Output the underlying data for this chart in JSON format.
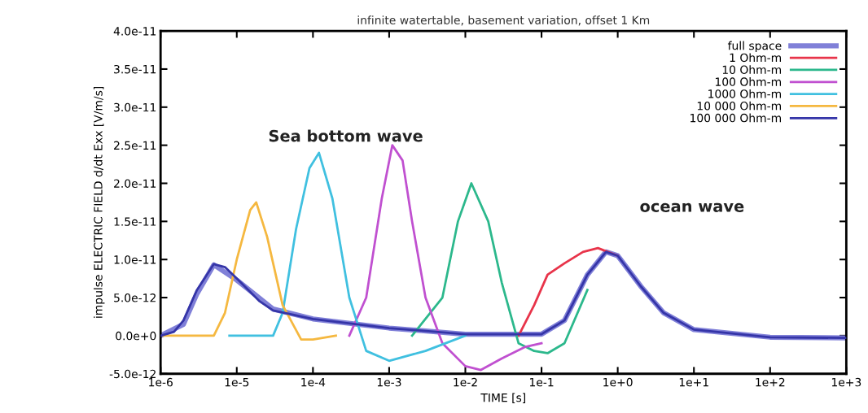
{
  "chart_data": {
    "type": "line",
    "title": "infinite watertable, basement variation, offset 1 Km",
    "xlabel": "TIME [s]",
    "ylabel": "impulse ELECTRIC FIELD d/dt Exx [V/m/s]",
    "log": "x",
    "grid": false,
    "legend": "top right",
    "marker": "none",
    "line_style": "solid",
    "xlim": [
      1e-06,
      1000
    ],
    "ylim": [
      -5e-12,
      4e-11
    ],
    "xticks": [
      {
        "value": 1e-06,
        "label": "1e-6"
      },
      {
        "value": 1e-05,
        "label": "1e-5"
      },
      {
        "value": 0.0001,
        "label": "1e-4"
      },
      {
        "value": 0.001,
        "label": "1e-3"
      },
      {
        "value": 0.01,
        "label": "1e-2"
      },
      {
        "value": 0.1,
        "label": "1e-1"
      },
      {
        "value": 1,
        "label": "1e+0"
      },
      {
        "value": 10,
        "label": "1e+1"
      },
      {
        "value": 100,
        "label": "1e+2"
      },
      {
        "value": 1000,
        "label": "1e+3"
      }
    ],
    "yticks": [
      {
        "value": -5e-12,
        "label": "-5.0e-12"
      },
      {
        "value": 0,
        "label": "0.0e+0"
      },
      {
        "value": 5e-12,
        "label": "5.0e-12"
      },
      {
        "value": 1e-11,
        "label": "1.0e-11"
      },
      {
        "value": 1.5e-11,
        "label": "1.5e-11"
      },
      {
        "value": 2e-11,
        "label": "2.0e-11"
      },
      {
        "value": 2.5e-11,
        "label": "2.5e-11"
      },
      {
        "value": 3e-11,
        "label": "3.0e-11"
      },
      {
        "value": 3.5e-11,
        "label": "3.5e-11"
      },
      {
        "value": 4e-11,
        "label": "4.0e-11"
      }
    ],
    "annotations": [
      "Sea bottom wave",
      "ocean wave"
    ],
    "series": [
      {
        "name": "full space",
        "color": "#8080d8",
        "x": [
          1e-06,
          2e-06,
          3e-06,
          5e-06,
          1e-05,
          3e-05,
          0.0001,
          0.001,
          0.01,
          0.1,
          0.2,
          0.4,
          0.7,
          1,
          2,
          4,
          10,
          100,
          1000
        ],
        "values": [
          0,
          1.5e-12,
          5.5e-12,
          9.3e-12,
          7.3e-12,
          3.5e-12,
          2.2e-12,
          1e-12,
          2e-13,
          2e-13,
          2e-12,
          8e-12,
          1.1e-11,
          1.05e-11,
          6.5e-12,
          3e-12,
          8e-13,
          -2e-13,
          -3e-13
        ]
      },
      {
        "name": "1 Ohm-m",
        "color": "#e8344a",
        "x": [
          0.05,
          0.08,
          0.12,
          0.2,
          0.35,
          0.55,
          1
        ],
        "values": [
          0,
          4e-12,
          8e-12,
          9.5e-12,
          1.1e-11,
          1.15e-11,
          1.05e-11
        ]
      },
      {
        "name": "10 Ohm-m",
        "color": "#2cb88c",
        "x": [
          0.002,
          0.005,
          0.008,
          0.012,
          0.02,
          0.03,
          0.05,
          0.08,
          0.12,
          0.2,
          0.4
        ],
        "values": [
          0,
          5e-12,
          1.5e-11,
          2e-11,
          1.5e-11,
          7e-12,
          -1e-12,
          -2e-12,
          -2.3e-12,
          -1e-12,
          6e-12
        ]
      },
      {
        "name": "100 Ohm-m",
        "color": "#c050d0",
        "x": [
          0.0003,
          0.0005,
          0.0008,
          0.0011,
          0.0015,
          0.002,
          0.003,
          0.005,
          0.01,
          0.016,
          0.03,
          0.06,
          0.1
        ],
        "values": [
          0,
          5e-12,
          1.8e-11,
          2.5e-11,
          2.3e-11,
          1.5e-11,
          5e-12,
          -1e-12,
          -4e-12,
          -4.5e-12,
          -3e-12,
          -1.5e-12,
          -1e-12
        ]
      },
      {
        "name": "1000 Ohm-m",
        "color": "#40c0e0",
        "x": [
          8e-06,
          3e-05,
          4e-05,
          6e-05,
          9e-05,
          0.00012,
          0.00018,
          0.0003,
          0.0005,
          0.001,
          0.003,
          0.01
        ],
        "values": [
          0,
          0,
          3e-12,
          1.4e-11,
          2.2e-11,
          2.4e-11,
          1.8e-11,
          5e-12,
          -2e-12,
          -3.3e-12,
          -2e-12,
          0
        ]
      },
      {
        "name": "10 000 Ohm-m",
        "color": "#f5b840",
        "x": [
          1e-06,
          5e-06,
          7e-06,
          1e-05,
          1.5e-05,
          1.8e-05,
          2.5e-05,
          4e-05,
          7e-05,
          0.0001,
          0.0002
        ],
        "values": [
          0,
          0,
          3e-12,
          1e-11,
          1.65e-11,
          1.75e-11,
          1.3e-11,
          4e-12,
          -5e-13,
          -5e-13,
          0
        ]
      },
      {
        "name": "100 000 Ohm-m",
        "color": "#3535a8",
        "x": [
          1e-06,
          1.5e-06,
          2e-06,
          3e-06,
          5e-06,
          7e-06,
          1e-05,
          2e-05,
          3e-05,
          0.0001,
          0.001,
          0.01,
          0.1,
          0.2,
          0.4,
          0.7,
          1,
          2,
          4,
          10,
          100,
          1000
        ],
        "values": [
          0,
          5e-13,
          2e-12,
          6e-12,
          9.4e-12,
          9e-12,
          7.5e-12,
          4.5e-12,
          3.3e-12,
          2.2e-12,
          1e-12,
          2e-13,
          2e-13,
          2e-12,
          8e-12,
          1.1e-11,
          1.05e-11,
          6.5e-12,
          3e-12,
          8e-13,
          -2e-13,
          -3e-13
        ]
      }
    ]
  }
}
